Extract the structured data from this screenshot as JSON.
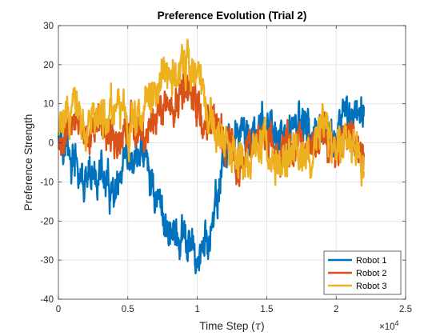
{
  "chart_data": {
    "type": "line",
    "title": "Preference Evolution (Trial 2)",
    "xlabel": "Time Step (τ)",
    "ylabel": "Preference Strength",
    "x_exponent_label": "×10",
    "x_exponent_power": "4",
    "xlim": [
      0,
      25000
    ],
    "ylim": [
      -40,
      30
    ],
    "xticks": [
      0,
      5000,
      10000,
      15000,
      20000,
      25000
    ],
    "xtick_labels": [
      "0",
      "0.5",
      "1",
      "1.5",
      "2",
      "2.5"
    ],
    "yticks": [
      -40,
      -30,
      -20,
      -10,
      0,
      10,
      20,
      30
    ],
    "ytick_labels": [
      "-40",
      "-30",
      "-20",
      "-10",
      "0",
      "10",
      "20",
      "30"
    ],
    "grid": true,
    "legend_position": "bottom-right",
    "x": [
      0,
      1000,
      2000,
      3000,
      4000,
      5000,
      6000,
      7000,
      8000,
      9000,
      10000,
      11000,
      12000,
      13000,
      14000,
      15000,
      16000,
      17000,
      18000,
      19000,
      20000,
      21000,
      22000
    ],
    "series": [
      {
        "name": "Robot 1",
        "color": "#0072BD",
        "values": [
          5,
          -5,
          -12,
          -8,
          -15,
          -7,
          -2,
          -13,
          -22,
          -26,
          -29,
          -24,
          -3,
          3,
          1,
          4,
          -1,
          6,
          3,
          0,
          2,
          7,
          10
        ]
      },
      {
        "name": "Robot 2",
        "color": "#D95319",
        "values": [
          0,
          4,
          2,
          5,
          1,
          3,
          4,
          7,
          8,
          11,
          10,
          6,
          1,
          -5,
          -2,
          2,
          -3,
          0,
          -2,
          2,
          -1,
          0,
          -4
        ]
      },
      {
        "name": "Robot 3",
        "color": "#EDB120",
        "values": [
          2,
          10,
          3,
          6,
          10,
          5,
          8,
          12,
          18,
          20,
          16,
          5,
          0,
          -5,
          -2,
          0,
          -4,
          -1,
          -3,
          3,
          -2,
          1,
          -5
        ]
      }
    ],
    "noise_amplitude": 5
  }
}
